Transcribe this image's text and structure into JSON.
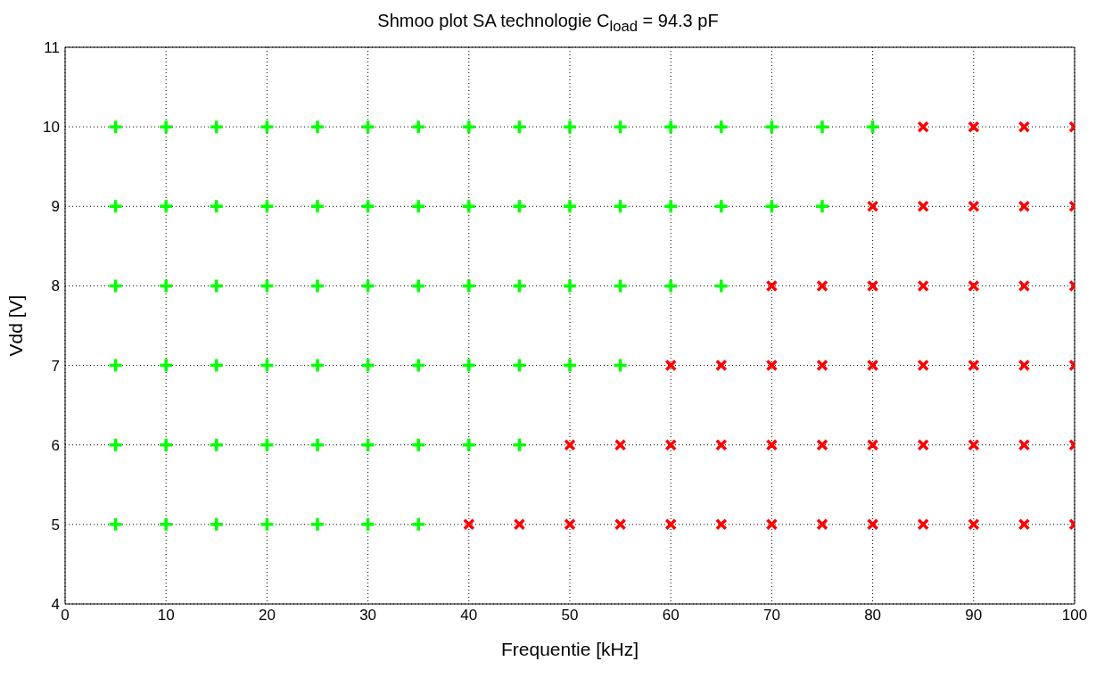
{
  "chart_data": {
    "type": "scatter",
    "title": "Shmoo plot SA technologie C$_{load}$ = 94.3 pF",
    "xlabel": "Frequentie [kHz]",
    "ylabel": "Vdd [V]",
    "xlim": [
      0,
      100
    ],
    "xticks": [
      0,
      10,
      20,
      30,
      40,
      50,
      60,
      70,
      80,
      90,
      100
    ],
    "ylim": [
      4,
      11
    ],
    "yticks": [
      4,
      5,
      6,
      7,
      8,
      9,
      10,
      11
    ],
    "grid": true,
    "line_style": "dotted",
    "series": [
      {
        "color": "#00ff00",
        "marker": "plus",
        "x": [
          5,
          10,
          15,
          20,
          25,
          30,
          35,
          40,
          45,
          50,
          55,
          60,
          65,
          70,
          75,
          80,
          5,
          10,
          15,
          20,
          25,
          30,
          35,
          40,
          45,
          50,
          55,
          60,
          65,
          70,
          75,
          5,
          10,
          15,
          20,
          25,
          30,
          35,
          40,
          45,
          50,
          55,
          60,
          65,
          5,
          10,
          15,
          20,
          25,
          30,
          35,
          40,
          45,
          50,
          55,
          5,
          10,
          15,
          20,
          25,
          30,
          35,
          40,
          45,
          5,
          10,
          15,
          20,
          25,
          30,
          35
        ],
        "values": [
          10,
          10,
          10,
          10,
          10,
          10,
          10,
          10,
          10,
          10,
          10,
          10,
          10,
          10,
          10,
          10,
          9,
          9,
          9,
          9,
          9,
          9,
          9,
          9,
          9,
          9,
          9,
          9,
          9,
          9,
          9,
          8,
          8,
          8,
          8,
          8,
          8,
          8,
          8,
          8,
          8,
          8,
          8,
          8,
          7,
          7,
          7,
          7,
          7,
          7,
          7,
          7,
          7,
          7,
          7,
          6,
          6,
          6,
          6,
          6,
          6,
          6,
          6,
          6,
          5,
          5,
          5,
          5,
          5,
          5,
          5
        ]
      },
      {
        "color": "#ff0000",
        "marker": "cross",
        "x": [
          85,
          90,
          95,
          100,
          80,
          85,
          90,
          95,
          100,
          70,
          75,
          80,
          85,
          90,
          95,
          100,
          60,
          65,
          70,
          75,
          80,
          85,
          90,
          95,
          100,
          50,
          55,
          60,
          65,
          70,
          75,
          80,
          85,
          90,
          95,
          100,
          40,
          45,
          50,
          55,
          60,
          65,
          70,
          75,
          80,
          85,
          90,
          95,
          100
        ],
        "values": [
          10,
          10,
          10,
          10,
          9,
          9,
          9,
          9,
          9,
          8,
          8,
          8,
          8,
          8,
          8,
          8,
          7,
          7,
          7,
          7,
          7,
          7,
          7,
          7,
          7,
          6,
          6,
          6,
          6,
          6,
          6,
          6,
          6,
          6,
          6,
          6,
          5,
          5,
          5,
          5,
          5,
          5,
          5,
          5,
          5,
          5,
          5,
          5,
          5
        ]
      }
    ]
  }
}
